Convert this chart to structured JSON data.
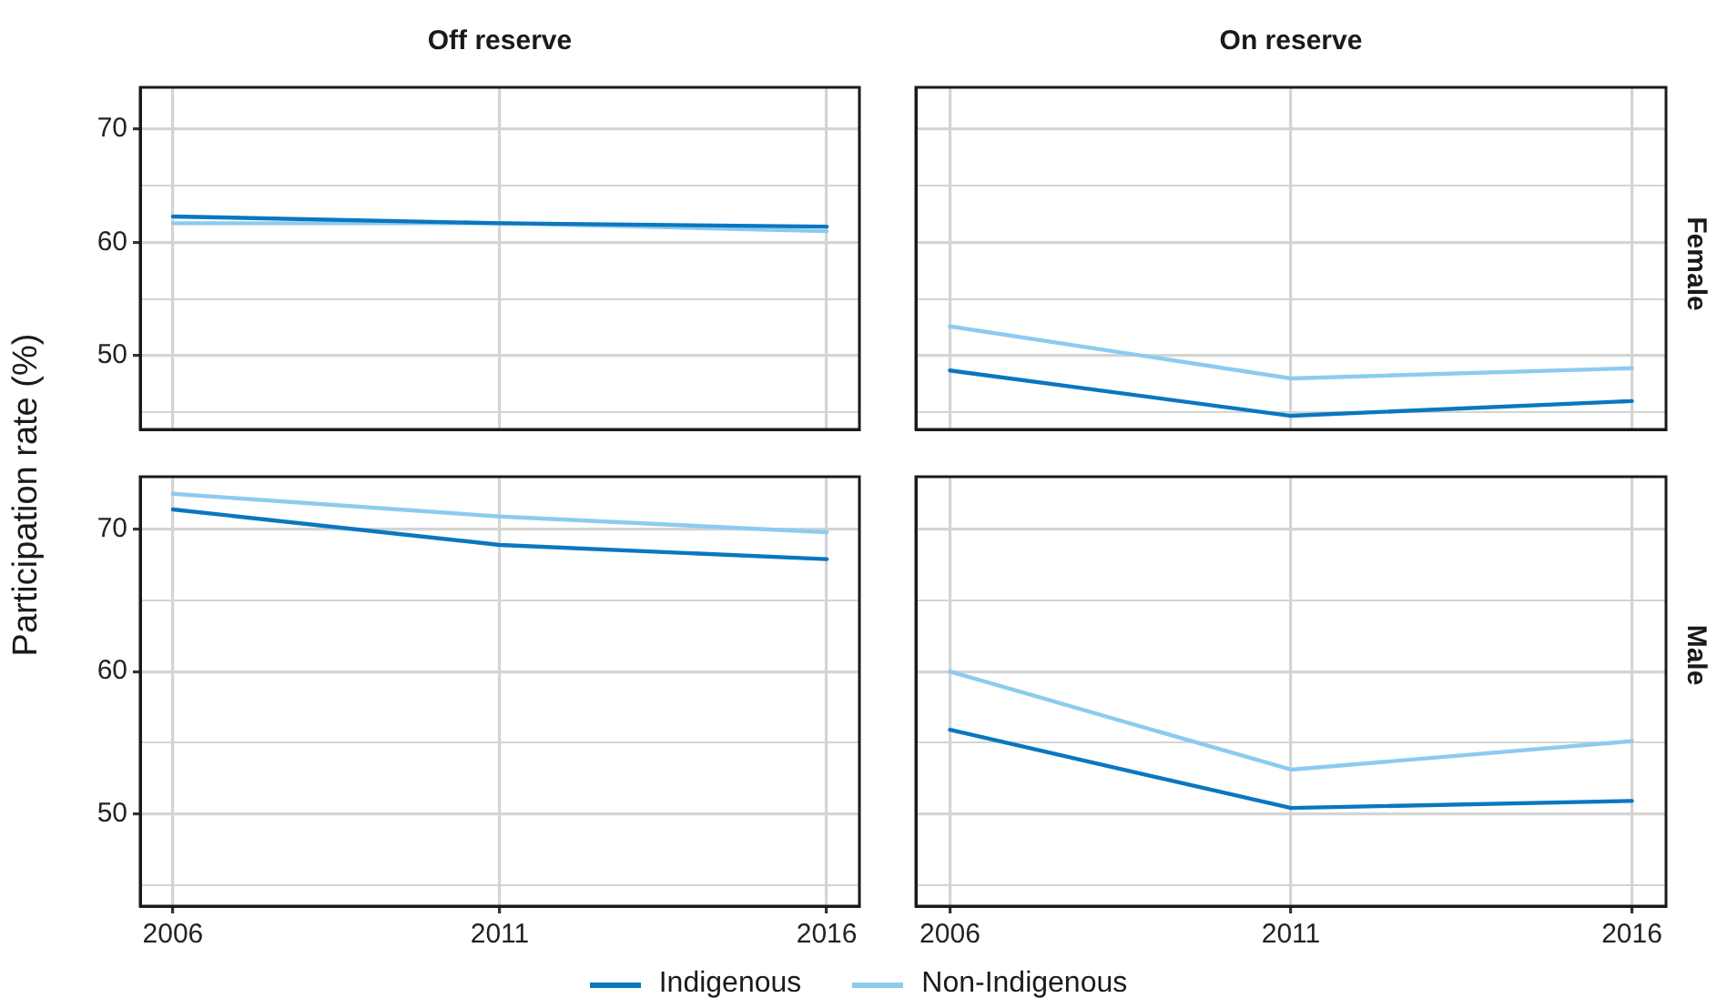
{
  "chart_data": [
    {
      "type": "line",
      "title": "Off reserve",
      "ylabel": "Participation rate (%)",
      "x": [
        2006,
        2011,
        2016
      ],
      "xlim": [
        2005.5,
        2016.5
      ],
      "xticks": [
        2006,
        2011,
        2016
      ],
      "ylim": [
        43.5,
        73.7
      ],
      "yticks": [
        {
          "value": 45,
          "label": null
        },
        50,
        {
          "value": 55,
          "label": null
        },
        60,
        {
          "value": 65,
          "label": null
        },
        70
      ],
      "grid": true,
      "legend": "bottom",
      "tick_labels": "y",
      "series": [
        {
          "name": "Indigenous",
          "color": "#0a77c0",
          "values": [
            62.3,
            61.7,
            61.4
          ]
        },
        {
          "name": "Non-Indigenous",
          "color": "#8ccbf0",
          "values": [
            61.7,
            61.7,
            61.0
          ]
        }
      ]
    },
    {
      "type": "line",
      "title": "On reserve",
      "annotations": [
        "Female"
      ],
      "x": [
        2006,
        2011,
        2016
      ],
      "xlim": [
        2005.5,
        2016.5
      ],
      "xticks": [
        2006,
        2011,
        2016
      ],
      "ylim": [
        43.5,
        73.7
      ],
      "yticks": [
        {
          "value": 45,
          "label": null
        },
        50,
        {
          "value": 55,
          "label": null
        },
        60,
        {
          "value": 65,
          "label": null
        },
        70
      ],
      "grid": true,
      "tick_labels": false,
      "series": [
        {
          "name": "Indigenous",
          "color": "#0a77c0",
          "values": [
            48.7,
            44.7,
            46.0
          ]
        },
        {
          "name": "Non-Indigenous",
          "color": "#8ccbf0",
          "values": [
            52.6,
            48.0,
            48.9
          ]
        }
      ]
    },
    {
      "type": "line",
      "x": [
        2006,
        2011,
        2016
      ],
      "xlim": [
        2005.5,
        2016.5
      ],
      "xticks": [
        2006,
        2011,
        2016
      ],
      "ylim": [
        43.5,
        73.7
      ],
      "yticks": [
        {
          "value": 45,
          "label": null
        },
        50,
        {
          "value": 55,
          "label": null
        },
        60,
        {
          "value": 65,
          "label": null
        },
        70
      ],
      "grid": true,
      "series": [
        {
          "name": "Indigenous",
          "color": "#0a77c0",
          "values": [
            71.4,
            68.9,
            67.9
          ]
        },
        {
          "name": "Non-Indigenous",
          "color": "#8ccbf0",
          "values": [
            72.5,
            70.9,
            69.8
          ]
        }
      ]
    },
    {
      "type": "line",
      "annotations": [
        "Male"
      ],
      "x": [
        2006,
        2011,
        2016
      ],
      "xlim": [
        2005.5,
        2016.5
      ],
      "xticks": [
        2006,
        2011,
        2016
      ],
      "ylim": [
        43.5,
        73.7
      ],
      "yticks": [
        {
          "value": 45,
          "label": null
        },
        50,
        {
          "value": 55,
          "label": null
        },
        60,
        {
          "value": 65,
          "label": null
        },
        70
      ],
      "grid": true,
      "tick_labels": "x",
      "series": [
        {
          "name": "Indigenous",
          "color": "#0a77c0",
          "values": [
            55.9,
            50.4,
            50.9
          ]
        },
        {
          "name": "Non-Indigenous",
          "color": "#8ccbf0",
          "values": [
            60.0,
            53.1,
            55.1
          ]
        }
      ]
    }
  ]
}
